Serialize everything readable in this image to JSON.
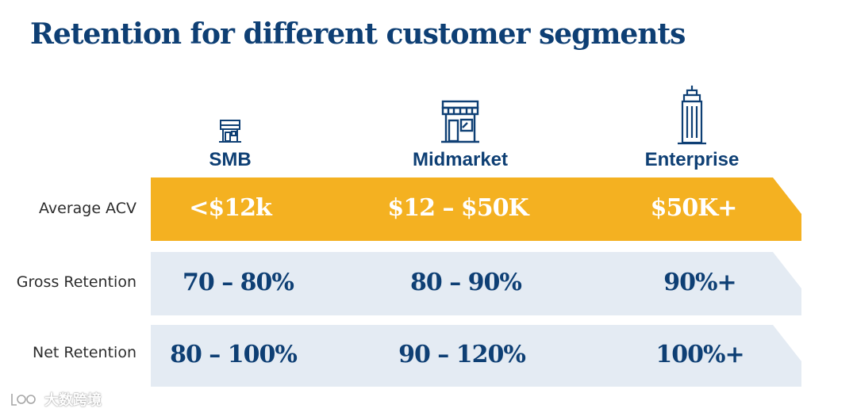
{
  "title": "Retention for different customer segments",
  "segments": [
    {
      "name": "SMB",
      "icon": "small-shop-icon"
    },
    {
      "name": "Midmarket",
      "icon": "storefront-icon"
    },
    {
      "name": "Enterprise",
      "icon": "skyscraper-icon"
    }
  ],
  "rows": [
    {
      "label": "Average ACV",
      "values": [
        "<$12k",
        "$12 – $50K",
        "$50K+"
      ]
    },
    {
      "label": "Gross Retention",
      "values": [
        "70 – 80%",
        "80 – 90%",
        "90%+"
      ]
    },
    {
      "label": "Net Retention",
      "values": [
        "80 – 100%",
        "90 – 120%",
        "100%+"
      ]
    }
  ],
  "colors": {
    "title": "#0e3f74",
    "acv_band": "#f4b121",
    "retention_band": "#e4ebf3",
    "text_navy": "#0e3f74",
    "text_white": "#ffffff"
  },
  "watermark": {
    "icon": "logo-icon",
    "text": "大数跨境"
  }
}
